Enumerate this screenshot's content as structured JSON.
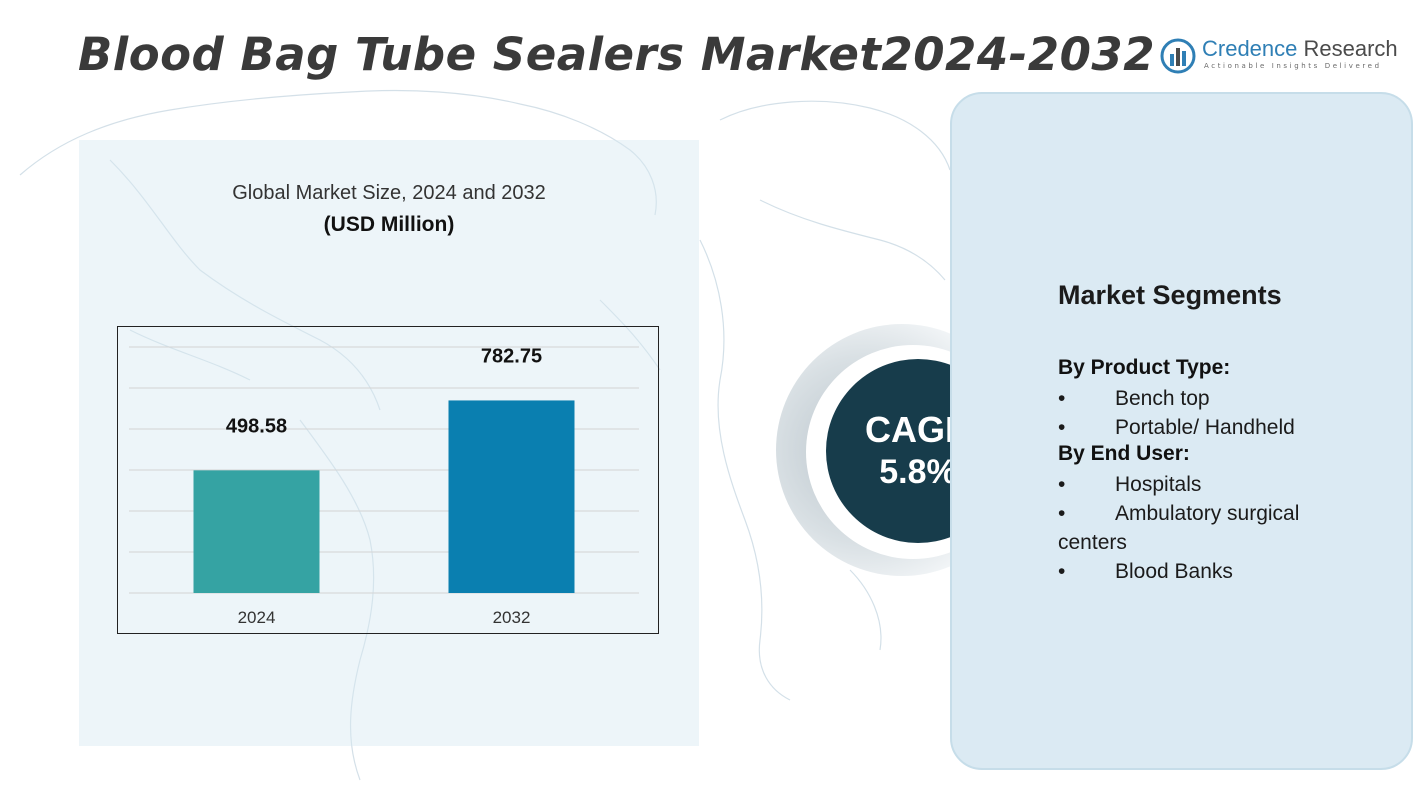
{
  "title": "Blood Bag Tube Sealers Market2024-2032",
  "logo": {
    "name_part1": "Credence",
    "name_part2": " Research",
    "tagline": "Actionable Insights Delivered",
    "colors": {
      "primary": "#2f7fb5",
      "text": "#4b4b4b"
    }
  },
  "chart_data": {
    "type": "bar",
    "title": "Global Market Size, 2024 and 2032",
    "subtitle": "(USD Million)",
    "categories": [
      "2024",
      "2032"
    ],
    "values": [
      498.58,
      782.75
    ],
    "data_labels": [
      "498.58",
      "782.75"
    ],
    "colors": [
      "#35a3a3",
      "#0a7fb0"
    ],
    "ylim": [
      0,
      1000
    ],
    "grid": true,
    "xlabel": "",
    "ylabel": ""
  },
  "cagr": {
    "label": "CAGR",
    "value": "5.8%",
    "color": "#173c4b"
  },
  "segments": {
    "heading": "Market Segments",
    "groups": [
      {
        "title": "By Product Type:",
        "items": [
          "Bench top",
          "Portable/ Handheld"
        ]
      },
      {
        "title": "By End User:",
        "items": [
          "Hospitals",
          "Ambulatory surgical centers",
          "Blood Banks"
        ]
      }
    ],
    "bullet": "•"
  }
}
